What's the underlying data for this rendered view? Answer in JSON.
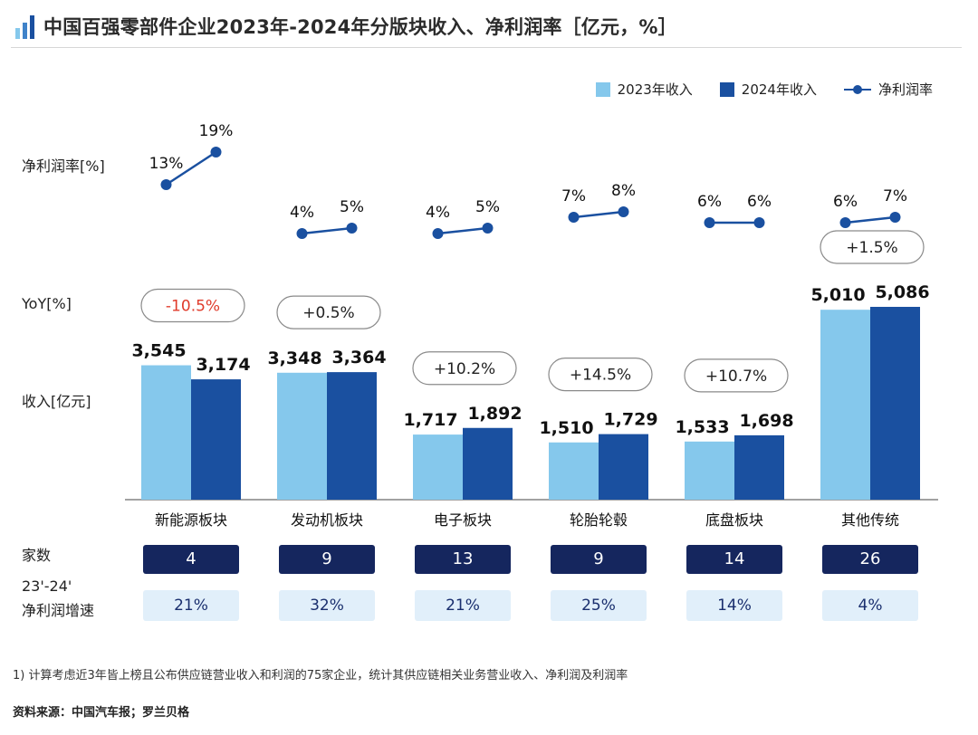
{
  "header": {
    "title": "中国百强零部件企业2023年-2024年分版块收入、净利润率［亿元，%］"
  },
  "colors": {
    "rev_2023": "#85c8ec",
    "rev_2024": "#1a50a0",
    "margin_line": "#1a50a0",
    "yoy_negative": "#e03b2b",
    "count_box": "#15265e",
    "growth_box": "#e1effa"
  },
  "row_labels": {
    "margin": "净利润率[%]",
    "yoy": "YoY[%]",
    "revenue": "收入[亿元]",
    "count": "家数",
    "growth_line1": "23'-24'",
    "growth_line2": "净利润增速"
  },
  "chart_data": {
    "type": "bar",
    "categories": [
      "新能源板块",
      "发动机板块",
      "电子板块",
      "轮胎轮毂",
      "底盘板块",
      "其他传统"
    ],
    "series": [
      {
        "name": "2023年收入",
        "values": [
          3545,
          3348,
          1717,
          1510,
          1533,
          5010
        ]
      },
      {
        "name": "2024年收入",
        "values": [
          3174,
          3364,
          1892,
          1729,
          1698,
          5086
        ]
      }
    ],
    "value_labels_2023": [
      "3,545",
      "3,348",
      "1,717",
      "1,510",
      "1,533",
      "5,010"
    ],
    "value_labels_2024": [
      "3,174",
      "3,364",
      "1,892",
      "1,729",
      "1,698",
      "5,086"
    ],
    "net_margin": {
      "name": "净利润率",
      "values_2023": [
        13,
        4,
        4,
        7,
        6,
        6
      ],
      "values_2024": [
        19,
        5,
        5,
        8,
        6,
        7
      ],
      "labels_2023": [
        "13%",
        "4%",
        "4%",
        "7%",
        "6%",
        "6%"
      ],
      "labels_2024": [
        "19%",
        "5%",
        "5%",
        "8%",
        "6%",
        "7%"
      ]
    },
    "yoy": [
      "-10.5%",
      "+0.5%",
      "+10.2%",
      "+14.5%",
      "+10.7%",
      "+1.5%"
    ],
    "yoy_values": [
      -10.5,
      0.5,
      10.2,
      14.5,
      10.7,
      1.5
    ],
    "company_count": [
      "4",
      "9",
      "13",
      "9",
      "14",
      "26"
    ],
    "net_profit_growth": [
      "21%",
      "32%",
      "21%",
      "25%",
      "14%",
      "4%"
    ]
  },
  "footnote": "1) 计算考虑近3年皆上榜且公布供应链营业收入和利润的75家企业，统计其供应链相关业务营业收入、净利润及利润率",
  "source": "资料来源：中国汽车报；罗兰贝格"
}
